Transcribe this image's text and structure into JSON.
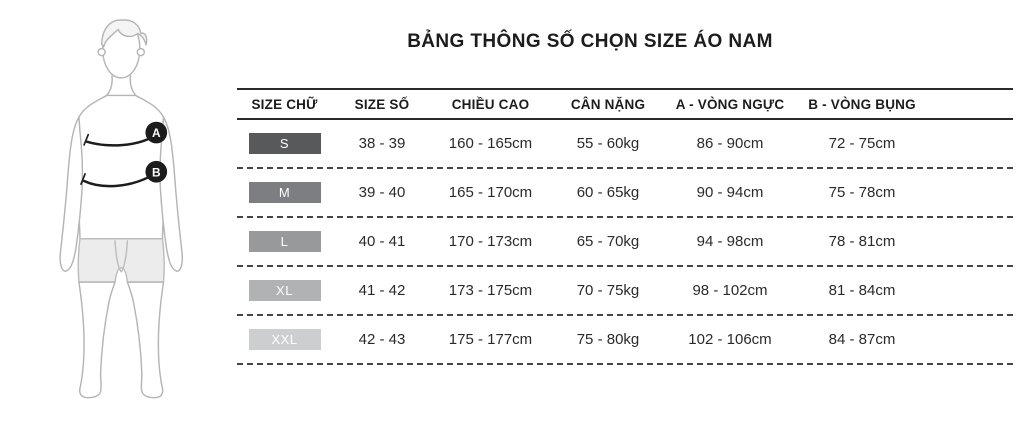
{
  "title": "BẢNG THÔNG SỐ CHỌN SIZE ÁO NAM",
  "figure": {
    "description": "outline drawing of a man with chest and waist measurement lines",
    "markers": [
      {
        "label": "A"
      },
      {
        "label": "B"
      }
    ]
  },
  "chart_data": {
    "type": "table",
    "title": "BẢNG THÔNG SỐ CHỌN SIZE ÁO NAM",
    "columns": [
      "SIZE CHỮ",
      "SIZE SỐ",
      "CHIỀU CAO",
      "CÂN NẶNG",
      "A - VÒNG NGỰC",
      "B - VÒNG BỤNG"
    ],
    "rows": [
      [
        "S",
        "38 - 39",
        "160 - 165cm",
        "55 - 60kg",
        "86 - 90cm",
        "72 - 75cm"
      ],
      [
        "M",
        "39 - 40",
        "165 - 170cm",
        "60 - 65kg",
        "90 - 94cm",
        "75 - 78cm"
      ],
      [
        "L",
        "40 - 41",
        "170 - 173cm",
        "65 - 70kg",
        "94 - 98cm",
        "78 - 81cm"
      ],
      [
        "XL",
        "41 - 42",
        "173 - 175cm",
        "70 - 75kg",
        "98 - 102cm",
        "81 - 84cm"
      ],
      [
        "XXL",
        "42 - 43",
        "175 - 177cm",
        "75 - 80kg",
        "102 - 106cm",
        "84 - 87cm"
      ]
    ],
    "badge_colors": {
      "S": "#58595b",
      "M": "#7d7e81",
      "L": "#98999b",
      "XL": "#b1b2b4",
      "XXL": "#cdced0"
    },
    "layout": {
      "row_separator": "dashed",
      "header_rule": "solid"
    }
  },
  "colors": {
    "background": "#ffffff",
    "text": "#1c1c1c",
    "badge_text": "#ffffff",
    "figure_outline": "#b5b5b5",
    "shorts_fill": "#ececec",
    "measure_line": "#1c1c1c",
    "header_rule": "#2b2b2b",
    "row_dash": "#454545"
  }
}
